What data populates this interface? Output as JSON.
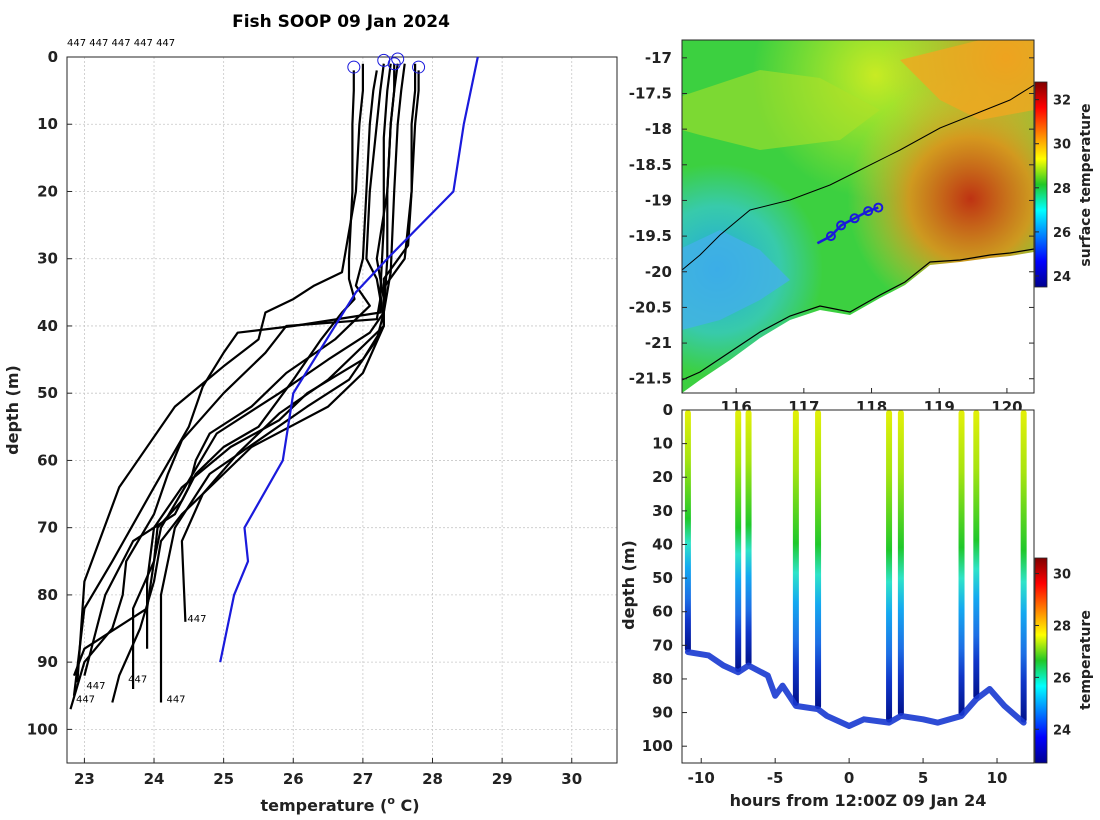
{
  "chart_data": [
    {
      "type": "line",
      "title": "Fish SOOP 09 Jan 2024",
      "xlabel": "temperature (",
      "xlabel_sup": "o",
      "xlabel_end": " C)",
      "ylabel": "depth (m)",
      "xlim": [
        22.75,
        30.65
      ],
      "ylim": [
        0,
        105
      ],
      "y_inverted": true,
      "xticks": [
        23,
        24,
        25,
        26,
        27,
        28,
        29,
        30
      ],
      "yticks": [
        0,
        10,
        20,
        30,
        40,
        50,
        60,
        70,
        80,
        90,
        100
      ],
      "top_labels": "447 447 447 447 447",
      "grid": true,
      "series": [
        {
          "name": "profile-1",
          "color": "#000000",
          "x": [
            26.87,
            26.87,
            26.85,
            26.85,
            26.8,
            26.8,
            26.88,
            26.7,
            26.4,
            26.0,
            25.5,
            25.0,
            24.6,
            24.4,
            24.05,
            24.0,
            23.9,
            23.0,
            22.85
          ],
          "y": [
            2,
            5,
            10,
            20,
            30,
            33,
            36,
            38,
            42,
            48,
            55,
            58,
            62,
            66,
            70,
            75,
            82,
            88,
            92
          ]
        },
        {
          "name": "profile-2",
          "color": "#000000",
          "x": [
            27.3,
            27.25,
            27.2,
            27.1,
            27.05,
            27.2,
            27.25,
            27.2,
            25.9,
            25.6,
            25.0,
            24.4,
            24.2,
            24.0,
            23.6,
            23.55,
            23.4,
            23.0,
            22.8
          ],
          "y": [
            1,
            5,
            10,
            20,
            30,
            33,
            36,
            39,
            40,
            44,
            50,
            57,
            62,
            68,
            75,
            80,
            85,
            90,
            97
          ]
        },
        {
          "name": "profile-3",
          "color": "#000000",
          "x": [
            27.4,
            27.35,
            27.3,
            27.3,
            27.25,
            27.25,
            26.0,
            25.2,
            25.0,
            24.7,
            24.5,
            24.0,
            23.4,
            23.0,
            22.85
          ],
          "y": [
            1,
            5,
            12,
            25,
            35,
            38,
            40,
            41,
            44,
            49,
            55,
            64,
            75,
            82,
            95
          ]
        },
        {
          "name": "profile-4",
          "color": "#000000",
          "x": [
            27.5,
            27.45,
            27.4,
            27.35,
            27.35,
            27.3,
            27.1,
            26.5,
            25.8,
            24.9,
            24.5,
            24.1,
            24.0,
            23.7,
            23.7
          ],
          "y": [
            1,
            5,
            10,
            20,
            30,
            38,
            41,
            45,
            50,
            56,
            63,
            70,
            75,
            82,
            94
          ]
        },
        {
          "name": "profile-5",
          "color": "#000000",
          "x": [
            27.6,
            27.55,
            27.5,
            27.45,
            27.4,
            27.3,
            27.2,
            26.8,
            26.2,
            25.5,
            24.8,
            24.3,
            24.1,
            24.1
          ],
          "y": [
            1,
            5,
            10,
            20,
            32,
            38,
            42,
            48,
            52,
            57,
            62,
            70,
            80,
            96
          ]
        },
        {
          "name": "profile-6",
          "color": "#000000",
          "x": [
            27.75,
            27.75,
            27.7,
            27.7,
            27.65,
            27.3,
            27.3,
            26.5,
            25.8,
            25.2,
            24.7,
            24.4,
            24.45
          ],
          "y": [
            1,
            5,
            10,
            20,
            28,
            33,
            40,
            48,
            53,
            59,
            65,
            72,
            84
          ]
        },
        {
          "name": "profile-7",
          "color": "#000000",
          "x": [
            27.8,
            27.8,
            27.75,
            27.7,
            27.6,
            27.25,
            27.3,
            27.0,
            26.2,
            25.8,
            25.1,
            24.4,
            24.2,
            24.0,
            23.9,
            23.9
          ],
          "y": [
            2,
            5,
            10,
            20,
            30,
            35,
            40,
            45,
            50,
            54,
            58,
            64,
            67,
            70,
            78,
            88
          ]
        },
        {
          "name": "profile-8",
          "color": "#000000",
          "x": [
            27.2,
            27.15,
            27.1,
            27.05,
            27.0,
            26.9,
            27.1,
            26.6,
            25.9,
            25.4,
            24.8,
            24.6,
            24.5,
            24.3,
            23.7,
            23.3,
            23.0
          ],
          "y": [
            2,
            5,
            10,
            20,
            30,
            34,
            37,
            42,
            47,
            52,
            56,
            60,
            64,
            68,
            72,
            80,
            92
          ]
        },
        {
          "name": "profile-9",
          "color": "#000000",
          "x": [
            27.0,
            27.0,
            26.95,
            26.9,
            26.7,
            26.3,
            26.0,
            25.6,
            25.5,
            25.0,
            24.3,
            23.5,
            23.0,
            22.9
          ],
          "y": [
            1,
            5,
            10,
            20,
            32,
            34,
            36,
            38,
            42,
            46,
            52,
            64,
            78,
            93
          ]
        },
        {
          "name": "profile-10",
          "color": "#000000",
          "x": [
            27.45,
            27.45,
            27.4,
            27.35,
            27.2,
            27.3,
            27.3,
            27.0,
            26.5,
            25.4,
            24.4,
            24.1,
            24.0,
            23.8,
            23.5,
            23.4
          ],
          "y": [
            1,
            5,
            10,
            20,
            30,
            36,
            40,
            47,
            52,
            58,
            68,
            72,
            78,
            85,
            92,
            96
          ]
        },
        {
          "name": "mean-profile",
          "color": "#1a1adc",
          "x": [
            28.65,
            28.45,
            28.3,
            27.35,
            26.9,
            26.0,
            25.85,
            25.3,
            25.35,
            25.15,
            24.95
          ],
          "y": [
            0,
            10,
            20,
            30,
            35,
            50,
            60,
            70,
            75,
            80,
            90
          ]
        }
      ],
      "circle_markers": [
        {
          "x": 26.87,
          "y": 1.5
        },
        {
          "x": 27.3,
          "y": 0.5
        },
        {
          "x": 27.45,
          "y": 1.0
        },
        {
          "x": 27.5,
          "y": 0.3
        },
        {
          "x": 27.8,
          "y": 1.5
        }
      ],
      "annotations": [
        {
          "text": "447",
          "x": 24.45,
          "y": 84
        },
        {
          "text": "447",
          "x": 23.0,
          "y": 94
        },
        {
          "text": "447",
          "x": 23.6,
          "y": 93
        },
        {
          "text": "447",
          "x": 22.85,
          "y": 96
        },
        {
          "text": "447",
          "x": 24.15,
          "y": 96
        }
      ]
    },
    {
      "type": "heatmap",
      "title": "",
      "xlim": [
        115.2,
        120.4
      ],
      "ylim": [
        -21.7,
        -16.75
      ],
      "xticks": [
        116,
        117,
        118,
        119,
        120
      ],
      "yticks": [
        -17,
        -17.5,
        -18,
        -18.5,
        -19,
        -19.5,
        -20,
        -20.5,
        -21,
        -21.5
      ],
      "ytick_labels": [
        "-17",
        "-17.5",
        "-18",
        "-18.5",
        "-19",
        "-19.5",
        "-20",
        "-20.5",
        "-21",
        "-21.5"
      ],
      "colorbar_label": "surface temperature",
      "colorbar_ticks": [
        24,
        26,
        28,
        30,
        32
      ],
      "colorbar_range": [
        23.5,
        32.8
      ],
      "track": {
        "x": [
          117.2,
          117.4,
          117.55,
          117.75,
          117.95,
          118.1
        ],
        "y": [
          -19.6,
          -19.5,
          -19.35,
          -19.25,
          -19.15,
          -19.1
        ]
      },
      "track_markers": [
        {
          "x": 117.4,
          "y": -19.5
        },
        {
          "x": 117.55,
          "y": -19.35
        },
        {
          "x": 117.75,
          "y": -19.25
        },
        {
          "x": 117.95,
          "y": -19.15
        },
        {
          "x": 118.1,
          "y": -19.1
        }
      ]
    },
    {
      "type": "scatter",
      "xlabel": "hours from 12:00Z 09 Jan 24",
      "ylabel": "depth (m)",
      "xlim": [
        -11.3,
        12.5
      ],
      "ylim": [
        0,
        105
      ],
      "y_inverted": true,
      "xticks": [
        -10,
        -5,
        0,
        5,
        10
      ],
      "yticks": [
        0,
        10,
        20,
        30,
        40,
        50,
        60,
        70,
        80,
        90,
        100
      ],
      "colorbar_label": "temperature",
      "colorbar_ticks": [
        24,
        26,
        28,
        30
      ],
      "colorbar_range": [
        22.7,
        30.6
      ],
      "profile_times": [
        -10.9,
        -7.5,
        -6.8,
        -3.6,
        -2.1,
        2.7,
        3.5,
        7.6,
        8.6,
        11.8
      ],
      "bottom_track": {
        "t": [
          -10.9,
          -9.5,
          -8.5,
          -7.5,
          -6.8,
          -5.5,
          -5.0,
          -4.5,
          -3.6,
          -2.1,
          -1.5,
          0.0,
          1.0,
          2.7,
          3.5,
          5.0,
          6.0,
          7.6,
          8.6,
          9.5,
          10.5,
          11.8
        ],
        "d": [
          72,
          73,
          76,
          78,
          76,
          79,
          85,
          82,
          88,
          89,
          91,
          94,
          92,
          93,
          91,
          92,
          93,
          91,
          86,
          83,
          88,
          93
        ]
      }
    }
  ]
}
